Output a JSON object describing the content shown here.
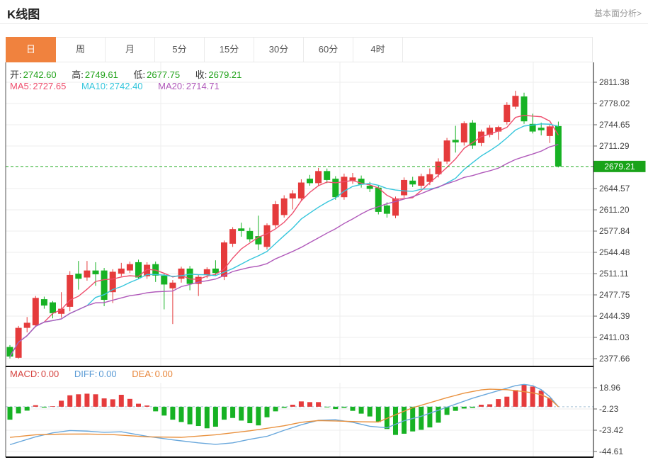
{
  "header": {
    "title": "K线图",
    "link": "基本面分析>"
  },
  "tabs": {
    "items": [
      "日",
      "周",
      "月",
      "5分",
      "15分",
      "30分",
      "60分",
      "4时"
    ],
    "active": 0
  },
  "info": {
    "ohlc": [
      {
        "label": "开:",
        "value": "2742.60"
      },
      {
        "label": "高:",
        "value": "2749.61"
      },
      {
        "label": "低:",
        "value": "2677.75"
      },
      {
        "label": "收:",
        "value": "2679.21"
      }
    ],
    "ma": [
      {
        "label": "MA5:",
        "value": "2727.65",
        "color": "#ee4f6e"
      },
      {
        "label": "MA10:",
        "value": "2742.40",
        "color": "#36c6dc"
      },
      {
        "label": "MA20:",
        "value": "2714.71",
        "color": "#b059ba"
      }
    ],
    "macd": [
      {
        "label": "MACD:",
        "value": "0.00",
        "color": "#d64541"
      },
      {
        "label": "DIFF:",
        "value": "0.00",
        "color": "#5b9bd5"
      },
      {
        "label": "DEA:",
        "value": "0.00",
        "color": "#e8873c"
      }
    ]
  },
  "colors": {
    "accent_tab": "#f0823e",
    "up": "#e53b3c",
    "down": "#17b224",
    "value_green": "#1ea117",
    "badge_green": "#19a319",
    "ma5": "#ee4f6e",
    "ma10": "#36c6dc",
    "ma20": "#b059ba",
    "diff_line": "#6aa8dc",
    "dea_line": "#e9913e",
    "grid": "#ededed",
    "axis_text": "#444",
    "current_line": "#22aa22",
    "macd_zero_line": "#a9c3d6"
  },
  "chart_data": {
    "type": "candlestick+macd",
    "main": {
      "y_ticks": [
        "2811.38",
        "2778.02",
        "2744.65",
        "2711.29",
        "2644.57",
        "2611.20",
        "2577.84",
        "2544.48",
        "2511.11",
        "2477.75",
        "2444.39",
        "2411.03",
        "2377.66"
      ],
      "current_price": "2679.21",
      "ma_periods": [
        5,
        10,
        20
      ],
      "candles_ohlc": [
        [
          2396,
          2399,
          2378,
          2381
        ],
        [
          2379,
          2429,
          2377.66,
          2426
        ],
        [
          2426,
          2443,
          2419,
          2434
        ],
        [
          2430,
          2476,
          2427,
          2473
        ],
        [
          2471,
          2475,
          2456,
          2461
        ],
        [
          2466,
          2468,
          2441,
          2449
        ],
        [
          2448,
          2482,
          2442,
          2456
        ],
        [
          2459,
          2515,
          2452,
          2509
        ],
        [
          2511,
          2531,
          2486,
          2503
        ],
        [
          2505,
          2531,
          2500,
          2516
        ],
        [
          2516,
          2529,
          2492,
          2510
        ],
        [
          2516,
          2520,
          2460,
          2470
        ],
        [
          2482,
          2518,
          2465,
          2514
        ],
        [
          2511,
          2528,
          2507,
          2519
        ],
        [
          2516,
          2530,
          2512,
          2526
        ],
        [
          2529,
          2533,
          2503,
          2505
        ],
        [
          2507,
          2529,
          2503,
          2525
        ],
        [
          2526,
          2530,
          2498,
          2508
        ],
        [
          2508,
          2512,
          2455,
          2494
        ],
        [
          2488,
          2501,
          2432,
          2497
        ],
        [
          2503,
          2522,
          2497,
          2519
        ],
        [
          2519,
          2523,
          2485,
          2495
        ],
        [
          2495,
          2509,
          2476,
          2506
        ],
        [
          2509,
          2521,
          2504,
          2518
        ],
        [
          2519,
          2532,
          2508,
          2512
        ],
        [
          2506,
          2563,
          2501,
          2560
        ],
        [
          2558,
          2584,
          2553,
          2581
        ],
        [
          2582,
          2591,
          2569,
          2578
        ],
        [
          2578,
          2583,
          2561,
          2565
        ],
        [
          2570,
          2602,
          2548,
          2557
        ],
        [
          2553,
          2590,
          2549,
          2587
        ],
        [
          2587,
          2625,
          2583,
          2620
        ],
        [
          2603,
          2634,
          2599,
          2629
        ],
        [
          2629,
          2642,
          2612,
          2637
        ],
        [
          2629,
          2659,
          2625,
          2654
        ],
        [
          2660,
          2666,
          2649,
          2653
        ],
        [
          2653,
          2677,
          2649,
          2672
        ],
        [
          2672,
          2676,
          2653,
          2658
        ],
        [
          2660,
          2664,
          2627,
          2631
        ],
        [
          2631,
          2668,
          2627,
          2663
        ],
        [
          2657,
          2669,
          2652,
          2662
        ],
        [
          2660,
          2665,
          2646,
          2651
        ],
        [
          2649,
          2655,
          2639,
          2644
        ],
        [
          2646,
          2650,
          2604,
          2608
        ],
        [
          2618,
          2623,
          2599,
          2605
        ],
        [
          2602,
          2632,
          2598,
          2629
        ],
        [
          2634,
          2662,
          2630,
          2658
        ],
        [
          2657,
          2663,
          2647,
          2651
        ],
        [
          2649,
          2668,
          2645,
          2664
        ],
        [
          2655,
          2676,
          2650,
          2667
        ],
        [
          2667,
          2692,
          2662,
          2687
        ],
        [
          2687,
          2724,
          2683,
          2720
        ],
        [
          2721,
          2743,
          2701,
          2717
        ],
        [
          2717,
          2750,
          2712,
          2747
        ],
        [
          2748,
          2752,
          2707,
          2712
        ],
        [
          2716,
          2737,
          2711,
          2734
        ],
        [
          2729,
          2744,
          2725,
          2740
        ],
        [
          2734,
          2743,
          2721,
          2741
        ],
        [
          2749,
          2780,
          2745,
          2776
        ],
        [
          2773,
          2798,
          2769,
          2790
        ],
        [
          2789,
          2795,
          2746,
          2750
        ],
        [
          2746,
          2762,
          2731,
          2734
        ],
        [
          2740,
          2748,
          2728,
          2736
        ],
        [
          2727,
          2745,
          2716,
          2742
        ],
        [
          2742.6,
          2749.61,
          2677.75,
          2679.21
        ]
      ]
    },
    "macd": {
      "y_ticks": [
        "18.96",
        "-2.23",
        "-23.42",
        "-44.61"
      ],
      "hist": [
        -12.9,
        -6.7,
        -3.9,
        1.5,
        -0.8,
        0.5,
        6,
        11.4,
        12.4,
        13,
        12.4,
        8.3,
        7.4,
        11.9,
        7.8,
        3,
        1.2,
        -4.6,
        -8.8,
        -12.9,
        -15.2,
        -17.5,
        -19.2,
        -21.5,
        -19.9,
        -12.9,
        -11.2,
        -13.8,
        -16.4,
        -18.6,
        -10.5,
        -4.6,
        -1.1,
        2,
        5.3,
        4.6,
        4.6,
        -0.6,
        -2.3,
        -1.1,
        -4.1,
        -6.9,
        -9.7,
        -15.2,
        -22.2,
        -28.1,
        -26.9,
        -24.6,
        -23,
        -20.6,
        -15.9,
        -8.1,
        -4.1,
        -1.8,
        -1.1,
        2,
        2.4,
        7.6,
        10,
        16.6,
        21.8,
        20.1,
        16.1,
        8.3,
        0
      ],
      "diff_points": [
        [
          0,
          -37.8
        ],
        [
          3,
          -30
        ],
        [
          5,
          -26
        ],
        [
          7,
          -23.7
        ],
        [
          9,
          -24.3
        ],
        [
          11,
          -25.5
        ],
        [
          13,
          -25
        ],
        [
          16,
          -29.5
        ],
        [
          19,
          -33
        ],
        [
          22,
          -36
        ],
        [
          24,
          -37.5
        ],
        [
          26,
          -36
        ],
        [
          28,
          -32.5
        ],
        [
          30,
          -29.5
        ],
        [
          32,
          -23.5
        ],
        [
          34,
          -18
        ],
        [
          36,
          -13.5
        ],
        [
          38,
          -13
        ],
        [
          40,
          -15.5
        ],
        [
          42,
          -19.5
        ],
        [
          44,
          -21
        ],
        [
          46,
          -14
        ],
        [
          48,
          -9.5
        ],
        [
          50,
          -3.5
        ],
        [
          52,
          2.5
        ],
        [
          54,
          8.5
        ],
        [
          56,
          13.5
        ],
        [
          58,
          18.5
        ],
        [
          59,
          21
        ],
        [
          60,
          22.3
        ],
        [
          61,
          21
        ],
        [
          62,
          17
        ],
        [
          63,
          10
        ],
        [
          64,
          0
        ]
      ],
      "dea_points": [
        [
          0,
          -30.5
        ],
        [
          3,
          -28
        ],
        [
          6,
          -27.3
        ],
        [
          9,
          -27.2
        ],
        [
          12,
          -27.8
        ],
        [
          16,
          -30
        ],
        [
          20,
          -30.5
        ],
        [
          24,
          -28
        ],
        [
          28,
          -24
        ],
        [
          32,
          -19
        ],
        [
          34,
          -15.5
        ],
        [
          36,
          -13.8
        ],
        [
          38,
          -14.2
        ],
        [
          41,
          -15
        ],
        [
          43,
          -15.2
        ],
        [
          45,
          -8
        ],
        [
          47,
          -1
        ],
        [
          49,
          4
        ],
        [
          51,
          9
        ],
        [
          53,
          13.5
        ],
        [
          55,
          16.8
        ],
        [
          56,
          17.5
        ],
        [
          58,
          17
        ],
        [
          60,
          15
        ],
        [
          61,
          13.8
        ],
        [
          62,
          12
        ],
        [
          63,
          8
        ],
        [
          64,
          0
        ]
      ]
    }
  }
}
